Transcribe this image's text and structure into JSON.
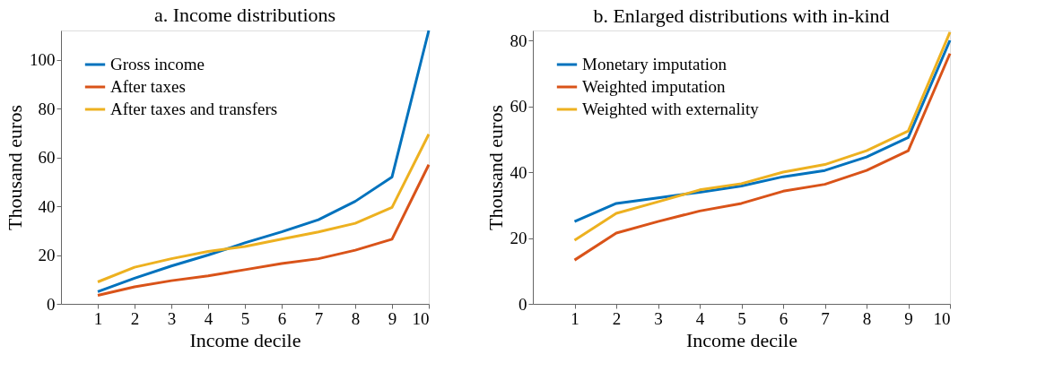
{
  "chart_data": [
    {
      "type": "line",
      "title": "a. Income distributions",
      "xlabel": "Income decile",
      "ylabel": "Thousand euros",
      "x": [
        1,
        2,
        3,
        4,
        5,
        6,
        7,
        8,
        9,
        10
      ],
      "xlim": [
        0,
        10
      ],
      "xticks": [
        1,
        2,
        3,
        4,
        5,
        6,
        7,
        8,
        9,
        10
      ],
      "ylim": [
        0,
        112
      ],
      "yticks": [
        0,
        20,
        40,
        60,
        80,
        100
      ],
      "grid": false,
      "legend": "top left",
      "marker": "none",
      "line_style": "solid",
      "series": [
        {
          "name": "Gross income",
          "color": "#0072bd",
          "values": [
            5,
            10.5,
            15.5,
            20,
            25,
            29.5,
            34.5,
            42,
            52,
            112
          ]
        },
        {
          "name": "After taxes",
          "color": "#d95319",
          "values": [
            3.5,
            7,
            9.5,
            11.5,
            14,
            16.5,
            18.5,
            22,
            26.5,
            57
          ]
        },
        {
          "name": "After taxes and transfers",
          "color": "#edb120",
          "values": [
            9,
            15,
            18.5,
            21.5,
            23.5,
            26.5,
            29.5,
            33,
            39.5,
            69.5
          ]
        }
      ]
    },
    {
      "type": "line",
      "title": "b. Enlarged distributions with in-kind",
      "xlabel": "Income decile",
      "ylabel": "Thousand euros",
      "x": [
        1,
        2,
        3,
        4,
        5,
        6,
        7,
        8,
        9,
        10
      ],
      "xlim": [
        0,
        10
      ],
      "xticks": [
        1,
        2,
        3,
        4,
        5,
        6,
        7,
        8,
        9,
        10
      ],
      "ylim": [
        0,
        83
      ],
      "yticks": [
        0,
        20,
        40,
        60,
        80
      ],
      "grid": false,
      "legend": "top left",
      "marker": "none",
      "line_style": "solid",
      "series": [
        {
          "name": "Monetary imputation",
          "color": "#0072bd",
          "values": [
            25,
            30.5,
            32.2,
            33.9,
            35.8,
            38.6,
            40.5,
            44.6,
            50.5,
            80
          ]
        },
        {
          "name": "Weighted imputation",
          "color": "#d95319",
          "values": [
            13.3,
            21.5,
            25,
            28.2,
            30.5,
            34.2,
            36.3,
            40.5,
            46.5,
            76
          ]
        },
        {
          "name": "Weighted with externality",
          "color": "#edb120",
          "values": [
            19.3,
            27.5,
            31,
            34.6,
            36.5,
            40,
            42.3,
            46.5,
            52.5,
            82.5
          ]
        }
      ]
    }
  ]
}
